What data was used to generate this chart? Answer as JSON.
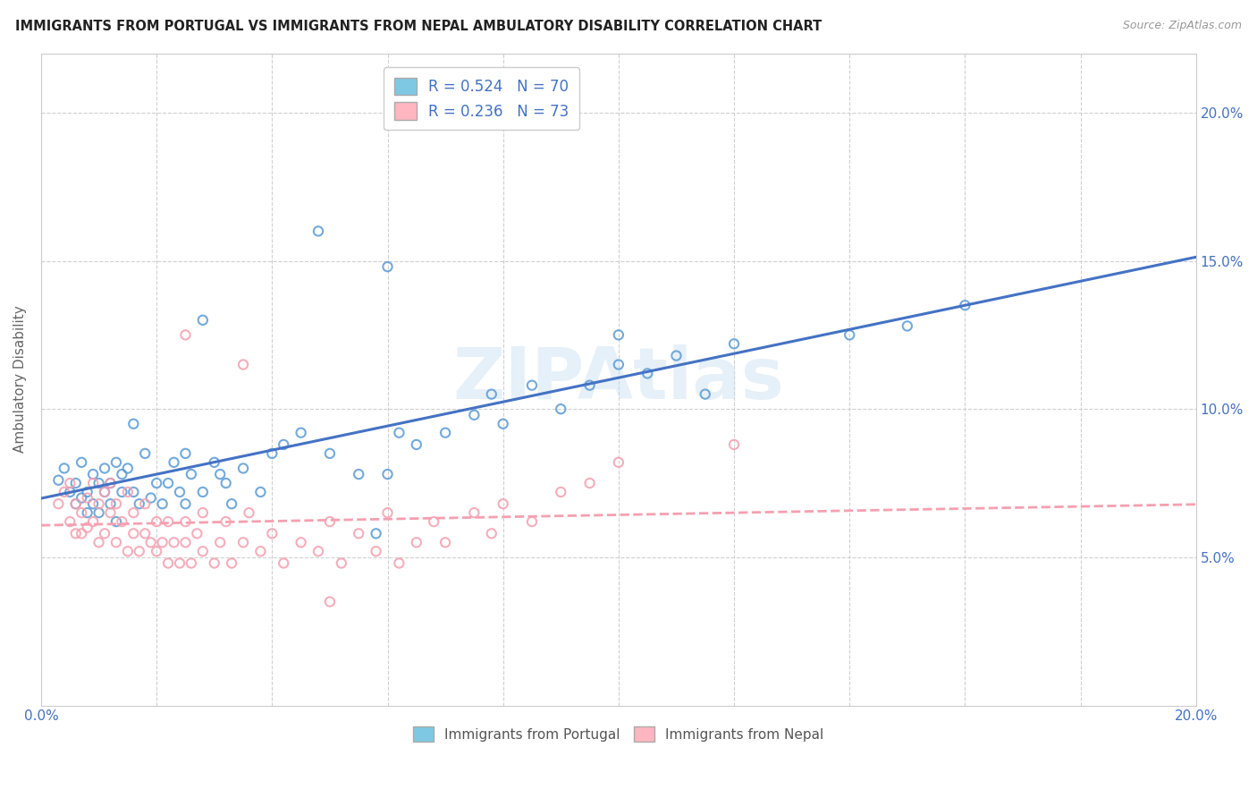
{
  "title": "IMMIGRANTS FROM PORTUGAL VS IMMIGRANTS FROM NEPAL AMBULATORY DISABILITY CORRELATION CHART",
  "source": "Source: ZipAtlas.com",
  "ylabel": "Ambulatory Disability",
  "xlim": [
    0.0,
    0.2
  ],
  "ylim": [
    0.0,
    0.22
  ],
  "ytick_vals": [
    0.05,
    0.1,
    0.15,
    0.2
  ],
  "ytick_labels": [
    "5.0%",
    "10.0%",
    "15.0%",
    "20.0%"
  ],
  "watermark": "ZIPAtlas",
  "legend_r1": "R = 0.524",
  "legend_n1": "N = 70",
  "legend_r2": "R = 0.236",
  "legend_n2": "N = 73",
  "color_portugal": "#7ec8e3",
  "color_nepal": "#ffb6c1",
  "color_portugal_edge": "#5b9bd5",
  "color_nepal_edge": "#f4a0b0",
  "trendline_portugal_color": "#4472c4",
  "trendline_nepal_color": "#f4a0b0",
  "portugal_scatter_x": [
    0.003,
    0.004,
    0.005,
    0.006,
    0.006,
    0.007,
    0.007,
    0.008,
    0.008,
    0.009,
    0.009,
    0.01,
    0.01,
    0.011,
    0.011,
    0.012,
    0.012,
    0.013,
    0.013,
    0.014,
    0.014,
    0.015,
    0.016,
    0.016,
    0.017,
    0.018,
    0.019,
    0.02,
    0.021,
    0.022,
    0.023,
    0.024,
    0.025,
    0.025,
    0.026,
    0.028,
    0.028,
    0.03,
    0.031,
    0.032,
    0.033,
    0.035,
    0.038,
    0.04,
    0.042,
    0.045,
    0.048,
    0.05,
    0.055,
    0.058,
    0.06,
    0.06,
    0.062,
    0.065,
    0.07,
    0.075,
    0.078,
    0.08,
    0.085,
    0.09,
    0.095,
    0.1,
    0.1,
    0.105,
    0.11,
    0.115,
    0.12,
    0.14,
    0.15,
    0.16
  ],
  "portugal_scatter_y": [
    0.076,
    0.08,
    0.072,
    0.068,
    0.075,
    0.082,
    0.07,
    0.072,
    0.065,
    0.078,
    0.068,
    0.075,
    0.065,
    0.072,
    0.08,
    0.068,
    0.075,
    0.082,
    0.062,
    0.072,
    0.078,
    0.08,
    0.072,
    0.095,
    0.068,
    0.085,
    0.07,
    0.075,
    0.068,
    0.075,
    0.082,
    0.072,
    0.068,
    0.085,
    0.078,
    0.072,
    0.13,
    0.082,
    0.078,
    0.075,
    0.068,
    0.08,
    0.072,
    0.085,
    0.088,
    0.092,
    0.16,
    0.085,
    0.078,
    0.058,
    0.148,
    0.078,
    0.092,
    0.088,
    0.092,
    0.098,
    0.105,
    0.095,
    0.108,
    0.1,
    0.108,
    0.115,
    0.125,
    0.112,
    0.118,
    0.105,
    0.122,
    0.125,
    0.128,
    0.135
  ],
  "nepal_scatter_x": [
    0.003,
    0.004,
    0.005,
    0.005,
    0.006,
    0.006,
    0.007,
    0.007,
    0.008,
    0.008,
    0.009,
    0.009,
    0.01,
    0.01,
    0.011,
    0.011,
    0.012,
    0.012,
    0.013,
    0.013,
    0.014,
    0.015,
    0.015,
    0.016,
    0.016,
    0.017,
    0.018,
    0.018,
    0.019,
    0.02,
    0.02,
    0.021,
    0.022,
    0.022,
    0.023,
    0.024,
    0.025,
    0.025,
    0.026,
    0.027,
    0.028,
    0.028,
    0.03,
    0.031,
    0.032,
    0.033,
    0.035,
    0.036,
    0.038,
    0.04,
    0.042,
    0.045,
    0.048,
    0.05,
    0.052,
    0.055,
    0.058,
    0.06,
    0.062,
    0.065,
    0.068,
    0.07,
    0.075,
    0.078,
    0.08,
    0.085,
    0.09,
    0.095,
    0.1,
    0.12,
    0.025,
    0.035,
    0.05
  ],
  "nepal_scatter_y": [
    0.068,
    0.072,
    0.062,
    0.075,
    0.068,
    0.058,
    0.065,
    0.058,
    0.06,
    0.07,
    0.075,
    0.062,
    0.055,
    0.068,
    0.072,
    0.058,
    0.065,
    0.075,
    0.055,
    0.068,
    0.062,
    0.052,
    0.072,
    0.058,
    0.065,
    0.052,
    0.058,
    0.068,
    0.055,
    0.052,
    0.062,
    0.055,
    0.048,
    0.062,
    0.055,
    0.048,
    0.055,
    0.062,
    0.048,
    0.058,
    0.052,
    0.065,
    0.048,
    0.055,
    0.062,
    0.048,
    0.055,
    0.065,
    0.052,
    0.058,
    0.048,
    0.055,
    0.052,
    0.062,
    0.048,
    0.058,
    0.052,
    0.065,
    0.048,
    0.055,
    0.062,
    0.055,
    0.065,
    0.058,
    0.068,
    0.062,
    0.072,
    0.075,
    0.082,
    0.088,
    0.125,
    0.115,
    0.035
  ]
}
